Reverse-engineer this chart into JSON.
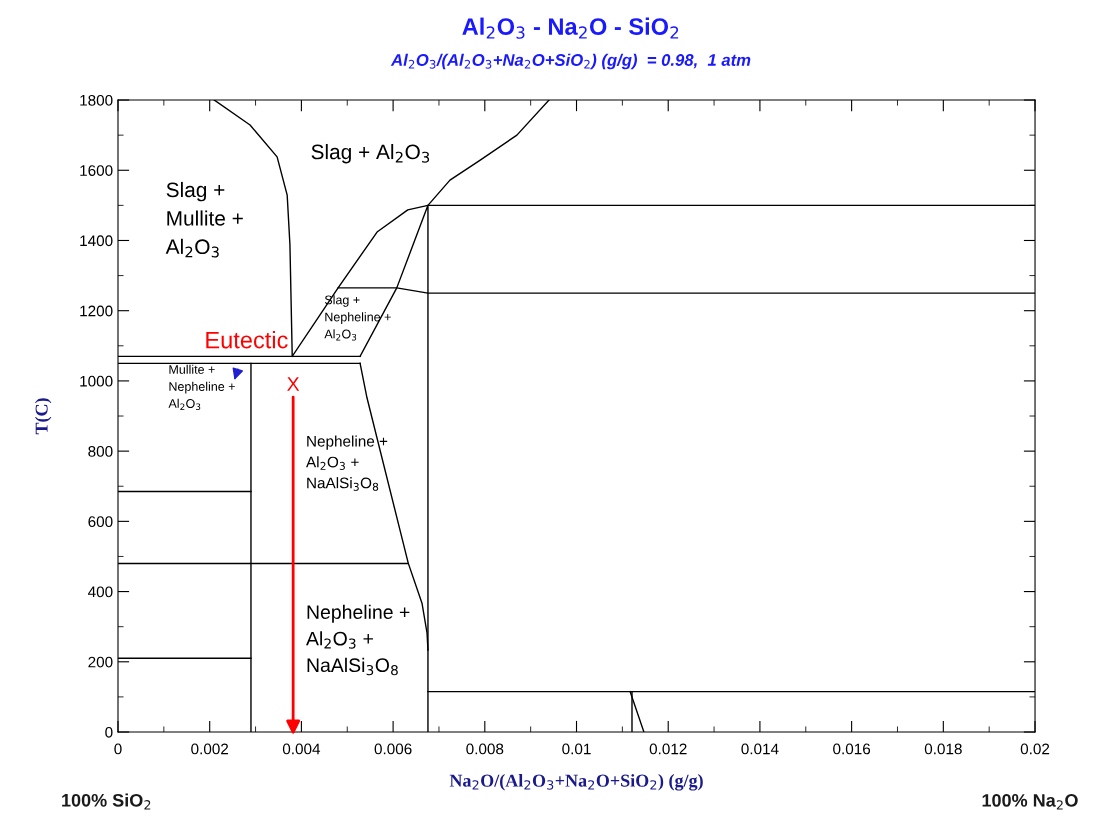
{
  "chart_data": {
    "type": "line",
    "title": "Al$_{2}$O$_{3}$ - Na$_{2}$O - SiO$_{2}$",
    "subtitle": "Al$_{2}$O$_{3}$/(Al$_{2}$O$_{3}$+Na$_{2}$O+SiO$_{2}$) (g/g)  = 0.98,  1 atm",
    "xlabel": "Na$_{2}$O/(Al$_{2}$O$_{3}$+Na$_{2}$O+SiO$_{2}$) (g/g)",
    "ylabel": "T(C)",
    "xlim": [
      0,
      0.02
    ],
    "ylim": [
      0,
      1800
    ],
    "xticks": [
      0,
      0.002,
      0.004,
      0.006,
      0.008,
      0.01,
      0.012,
      0.014,
      0.016,
      0.018,
      0.02
    ],
    "yticks": [
      0,
      200,
      400,
      600,
      800,
      1000,
      1200,
      1400,
      1600,
      1800
    ],
    "grid": false,
    "legend": false,
    "marker": "none",
    "line_style": "solid",
    "series": [
      {
        "color": "#000000",
        "x": [
          0.0021,
          0.00288,
          0.00347,
          0.00369,
          0.00375,
          0.0038
        ],
        "values": [
          1800,
          1729,
          1638,
          1529,
          1387,
          1070
        ]
      },
      {
        "color": "#000000",
        "x": [
          0.0038,
          0.0048,
          0.00565,
          0.00632,
          0.00676,
          0.02
        ],
        "values": [
          1070,
          1265,
          1424,
          1487,
          1500,
          1500
        ]
      },
      {
        "color": "#000000",
        "x": [
          0.00676,
          0.00724,
          0.0079,
          0.0087,
          0.0094
        ],
        "values": [
          1500,
          1572,
          1629,
          1700,
          1800
        ]
      },
      {
        "color": "#000000",
        "x": [
          0.00528,
          0.00608,
          0.00676,
          0.00676
        ],
        "values": [
          1070,
          1265,
          1500,
          0
        ]
      },
      {
        "color": "#000000",
        "x": [
          0.0048,
          0.00608,
          0.00676,
          0.02
        ],
        "values": [
          1265,
          1265,
          1250,
          1250
        ]
      },
      {
        "color": "#000000",
        "x": [
          0,
          0.00528
        ],
        "values": [
          1070,
          1070
        ]
      },
      {
        "color": "#000000",
        "x": [
          0,
          0.00528
        ],
        "values": [
          1050,
          1050
        ]
      },
      {
        "color": "#000000",
        "x": [
          0.00528,
          0.00543,
          0.00633,
          0.00663,
          0.00674,
          0.00676
        ],
        "values": [
          1050,
          952,
          481,
          367,
          282,
          233
        ]
      },
      {
        "color": "#000000",
        "x": [
          0.0029,
          0.0029
        ],
        "values": [
          1050,
          0
        ]
      },
      {
        "color": "#000000",
        "x": [
          0,
          0.0029
        ],
        "values": [
          685,
          685
        ]
      },
      {
        "color": "#000000",
        "x": [
          0,
          0.00633
        ],
        "values": [
          480,
          480
        ]
      },
      {
        "color": "#000000",
        "x": [
          0,
          0.0029
        ],
        "values": [
          210,
          210
        ]
      },
      {
        "color": "#000000",
        "x": [
          0.00676,
          0.02
        ],
        "values": [
          115,
          115
        ]
      },
      {
        "color": "#000000",
        "x": [
          0.01117,
          0.01147
        ],
        "values": [
          115,
          0
        ]
      },
      {
        "color": "#000000",
        "x": [
          0.01121,
          0.01121
        ],
        "values": [
          115,
          0
        ]
      }
    ],
    "annotations": [
      "Slag + Al$_{2}$O$_{3}$",
      "Slag +\nMullite +\nAl$_{2}$O$_{3}$",
      "Slag +\nNepheline +\nAl$_{2}$O$_{3}$",
      "Mullite +\nNepheline +\nAl$_{2}$O$_{3}$",
      "Nepheline +\nAl$_{2}$O$_{3}$ +\nNaAlSi$_{3}$O$_{8}$",
      "Nepheline +\nAl$_{2}$O$_{3}$ +\nNaAlSi$_{3}$O$_{8}$",
      "Eutectic",
      "X",
      "100% SiO$_{2}$",
      "100% Na$_{2}$O"
    ]
  }
}
